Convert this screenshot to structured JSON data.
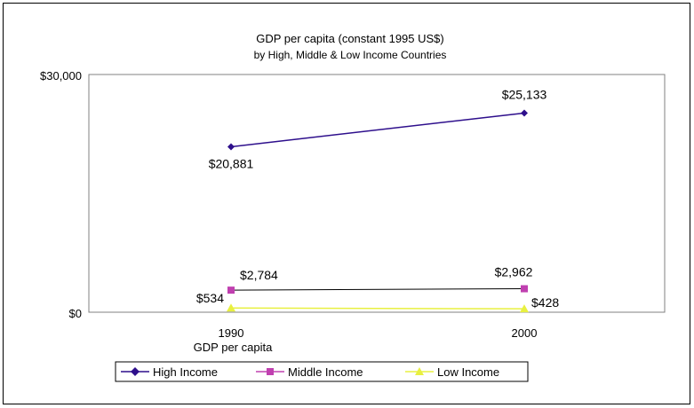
{
  "chart_data": {
    "type": "line",
    "title": "GDP per capita (constant 1995 US$)",
    "subtitle": "by High, Middle & Low Income Countries",
    "xlabel": "GDP per capita",
    "ylabel": "",
    "categories": [
      "1990",
      "2000"
    ],
    "ylim": [
      0,
      30000
    ],
    "yticks": [
      "$0",
      "$30,000"
    ],
    "grid": false,
    "legend_position": "bottom",
    "series": [
      {
        "name": "High Income",
        "values": [
          20881,
          25133
        ],
        "labels": [
          "$20,881",
          "$25,133"
        ],
        "color": "#2e0f8c",
        "marker": "diamond"
      },
      {
        "name": "Middle Income",
        "values": [
          2784,
          2962
        ],
        "labels": [
          "$2,784",
          "$2,962"
        ],
        "color": "#c040b0",
        "marker": "square"
      },
      {
        "name": "Low Income",
        "values": [
          534,
          428
        ],
        "labels": [
          "$534",
          "$428"
        ],
        "color": "#e8f040",
        "marker": "triangle"
      }
    ]
  }
}
